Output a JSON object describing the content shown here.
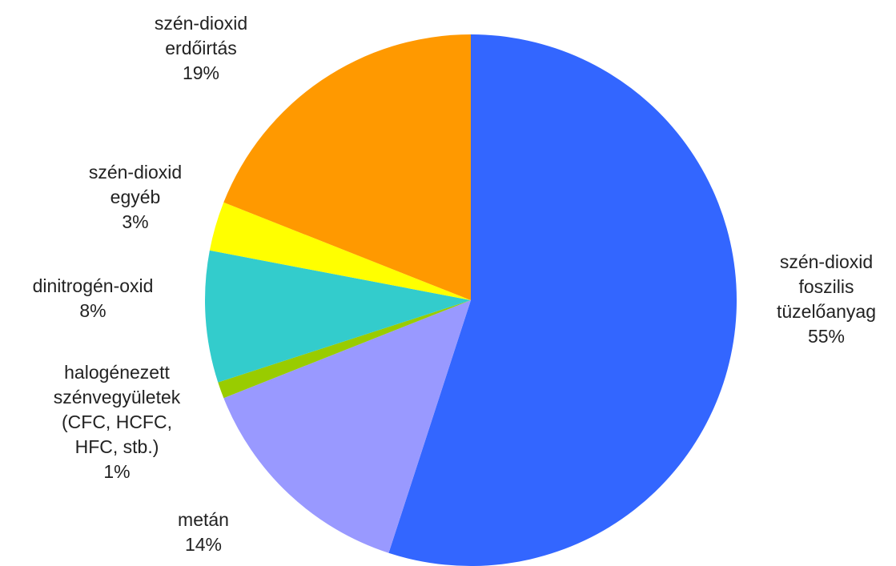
{
  "chart_data": {
    "type": "pie",
    "start_angle_deg": 0,
    "direction": "clockwise",
    "slices": [
      {
        "key": "foszilis",
        "label_lines": [
          "szén-dioxid",
          "foszilis",
          "tüzelőanyag"
        ],
        "pct_label": "55%",
        "value": 55,
        "color": "#3366ff"
      },
      {
        "key": "metan",
        "label_lines": [
          "metán"
        ],
        "pct_label": "14%",
        "value": 14,
        "color": "#9999ff"
      },
      {
        "key": "halogenezett",
        "label_lines": [
          "halogénezett",
          "szénvegyületek",
          "(CFC, HCFC,",
          "HFC, stb.)"
        ],
        "pct_label": "1%",
        "value": 1,
        "color": "#99cc00"
      },
      {
        "key": "dinitrogen",
        "label_lines": [
          "dinitrogén-oxid"
        ],
        "pct_label": "8%",
        "value": 8,
        "color": "#33cccc"
      },
      {
        "key": "egyeb",
        "label_lines": [
          "szén-dioxid",
          "egyéb"
        ],
        "pct_label": "3%",
        "value": 3,
        "color": "#ffff00"
      },
      {
        "key": "erdoirtas",
        "label_lines": [
          "szén-dioxid",
          "erdőirtás"
        ],
        "pct_label": "19%",
        "value": 19,
        "color": "#ff9900"
      }
    ]
  }
}
